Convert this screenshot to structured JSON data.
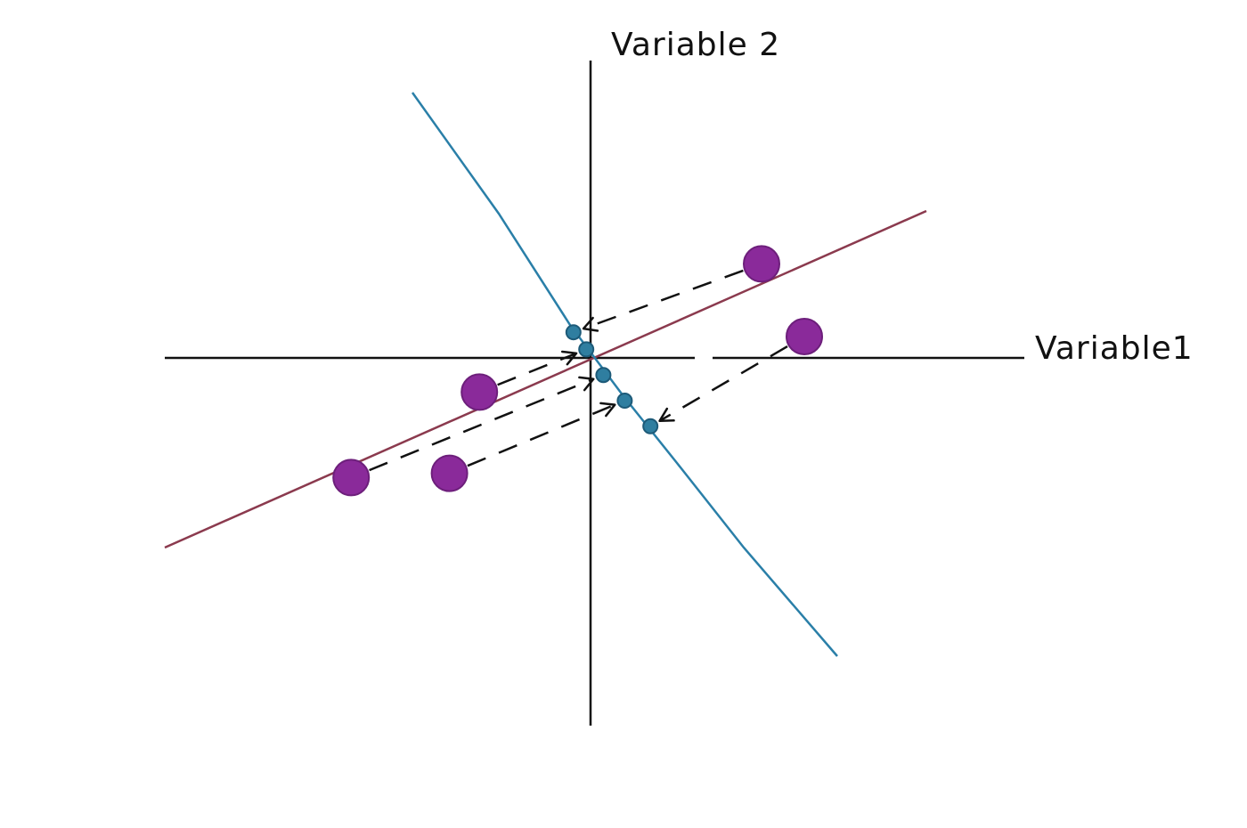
{
  "labels": {
    "x_axis": "Variable1",
    "y_axis": "Variable 2"
  },
  "colors": {
    "axis": "#111111",
    "first_component": "#8b3a4e",
    "second_component": "#2a7fa8",
    "data_point": "#8a2a9a",
    "projected_point": "#2f7ea0",
    "projection": "#111111"
  },
  "data_points": [
    {
      "x": 4.0,
      "y": 2.2
    },
    {
      "x": 5.0,
      "y": 0.5
    },
    {
      "x": -2.6,
      "y": -0.8
    },
    {
      "x": -5.6,
      "y": -2.8
    },
    {
      "x": -3.3,
      "y": -2.7
    }
  ],
  "projected_points": [
    {
      "x": -0.4,
      "y": 0.6
    },
    {
      "x": -0.1,
      "y": 0.2
    },
    {
      "x": 0.3,
      "y": -0.4
    },
    {
      "x": 0.8,
      "y": -1.0
    },
    {
      "x": 1.4,
      "y": -1.6
    }
  ],
  "projections": [
    {
      "from": 0,
      "to": 0
    },
    {
      "from": 1,
      "to": 4
    },
    {
      "from": 2,
      "to": 1
    },
    {
      "from": 3,
      "to": 2
    },
    {
      "from": 4,
      "to": 3
    }
  ]
}
